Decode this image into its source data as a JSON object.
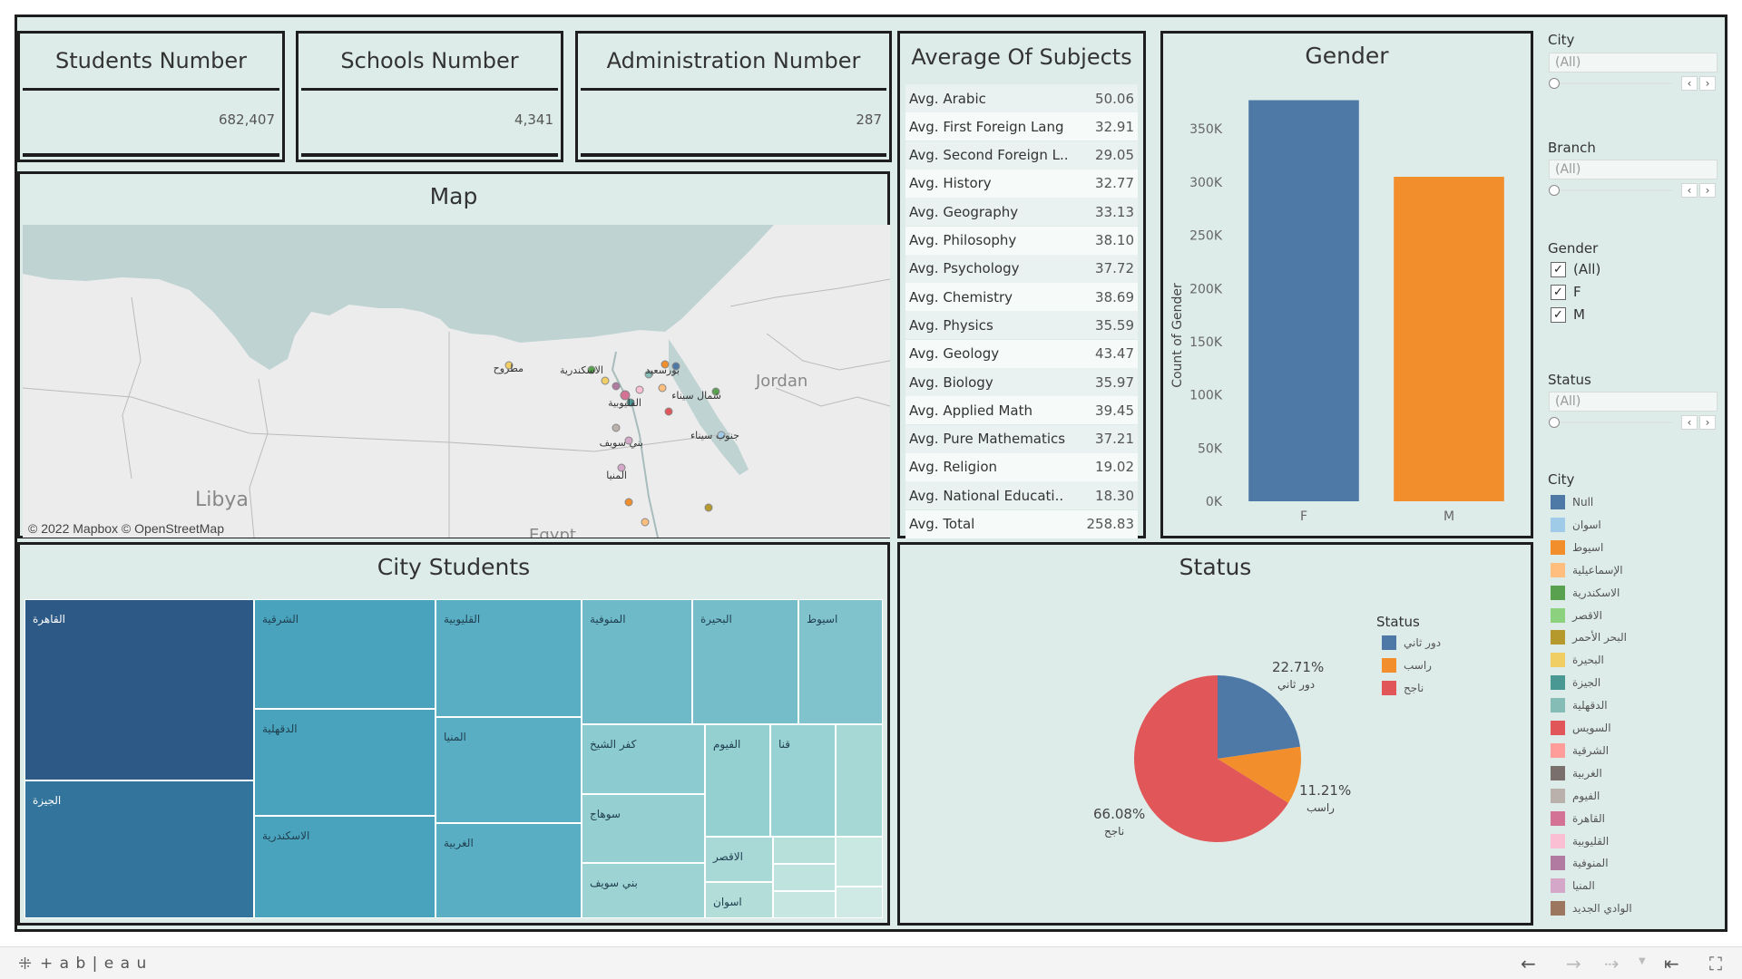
{
  "kpis": {
    "students": {
      "title": "Students Number",
      "value": "682,407"
    },
    "schools": {
      "title": "Schools Number",
      "value": "4,341"
    },
    "admin": {
      "title": "Administration Number",
      "value": "287"
    }
  },
  "averages": {
    "title": "Average Of Subjects",
    "rows": [
      {
        "label": "Avg. Arabic",
        "value": "50.06"
      },
      {
        "label": "Avg. First Foreign Lang",
        "value": "32.91"
      },
      {
        "label": "Avg. Second Foreign L..",
        "value": "29.05"
      },
      {
        "label": "Avg. History",
        "value": "32.77"
      },
      {
        "label": "Avg. Geography",
        "value": "33.13"
      },
      {
        "label": "Avg. Philosophy",
        "value": "38.10"
      },
      {
        "label": "Avg. Psychology",
        "value": "37.72"
      },
      {
        "label": "Avg. Chemistry",
        "value": "38.69"
      },
      {
        "label": "Avg. Physics",
        "value": "35.59"
      },
      {
        "label": "Avg. Geology",
        "value": "43.47"
      },
      {
        "label": "Avg. Biology",
        "value": "35.97"
      },
      {
        "label": "Avg. Applied Math",
        "value": "39.45"
      },
      {
        "label": "Avg. Pure Mathematics",
        "value": "37.21"
      },
      {
        "label": "Avg. Religion",
        "value": "19.02"
      },
      {
        "label": "Avg. National Educati..",
        "value": "18.30"
      },
      {
        "label": "Avg. Total",
        "value": "258.83"
      }
    ]
  },
  "map": {
    "title": "Map",
    "attribution": "© 2022 Mapbox  © OpenStreetMap",
    "country_labels": [
      "Libya",
      "Jordan",
      "Egypt"
    ],
    "city_labels": [
      "مطروح",
      "الاسكندرية",
      "بورسعيد",
      "القليوبية",
      "شمال سيناء",
      "جنوب سيناء",
      "بني سويف",
      "المنيا"
    ]
  },
  "city_students": {
    "title": "City Students",
    "cells": [
      "القاهرة",
      "الجيزة",
      "الشرقية",
      "الدقهلية",
      "الاسكندرية",
      "القليوبية",
      "المنيا",
      "الغربية",
      "المنوفية",
      "البحيرة",
      "اسيوط",
      "كفر الشيخ",
      "الفيوم",
      "قنا",
      "سوهاج",
      "بني سويف",
      "الاقصر",
      "اسوان"
    ]
  },
  "status": {
    "title": "Status",
    "legend_title": "Status",
    "legend": [
      {
        "label": "دور ثاني",
        "color": "#4e79a7"
      },
      {
        "label": "راسب",
        "color": "#f28e2b"
      },
      {
        "label": "ناجح",
        "color": "#e15759"
      }
    ],
    "labels": {
      "second": {
        "pct": "22.71%",
        "name": "دور ثاني"
      },
      "fail": {
        "pct": "11.21%",
        "name": "راسب"
      },
      "pass": {
        "pct": "66.08%",
        "name": "ناجح"
      }
    }
  },
  "filters": {
    "city_title": "City",
    "city_value": "(All)",
    "branch_title": "Branch",
    "branch_value": "(All)",
    "gender_title": "Gender",
    "gender_options": [
      "(All)",
      "F",
      "M"
    ],
    "status_title": "Status",
    "status_value": "(All)",
    "legend_title": "City",
    "legend_items": [
      {
        "label": "Null",
        "color": "#4e79a7"
      },
      {
        "label": "اسوان",
        "color": "#a0cbe8"
      },
      {
        "label": "اسيوط",
        "color": "#f28e2b"
      },
      {
        "label": "الإسماعيلية",
        "color": "#ffbe7d"
      },
      {
        "label": "الاسكندرية",
        "color": "#59a14f"
      },
      {
        "label": "الاقصر",
        "color": "#8cd17d"
      },
      {
        "label": "البحر الأحمر",
        "color": "#b6992d"
      },
      {
        "label": "البحيرة",
        "color": "#f1ce63"
      },
      {
        "label": "الجيزة",
        "color": "#499894"
      },
      {
        "label": "الدقهلية",
        "color": "#86bcb6"
      },
      {
        "label": "السويس",
        "color": "#e15759"
      },
      {
        "label": "الشرقية",
        "color": "#ff9d9a"
      },
      {
        "label": "الغربية",
        "color": "#79706e"
      },
      {
        "label": "الفيوم",
        "color": "#bab0ac"
      },
      {
        "label": "القاهرة",
        "color": "#d37295"
      },
      {
        "label": "القليوبية",
        "color": "#fabfd2"
      },
      {
        "label": "المنوفية",
        "color": "#b07aa1"
      },
      {
        "label": "المنيا",
        "color": "#d4a6c8"
      },
      {
        "label": "الوادي الجديد",
        "color": "#9d7660"
      }
    ]
  },
  "footer": {
    "brand": "+ a b | e a u"
  },
  "colors": {
    "bg": "#ddece8",
    "border": "#1e1e1e",
    "blue": "#4e79a7",
    "orange": "#f28e2b",
    "red": "#e15759"
  },
  "chart_data": [
    {
      "type": "bar",
      "title": "Gender",
      "categories": [
        "F",
        "M"
      ],
      "values": [
        377000,
        305000
      ],
      "colors": [
        "#4e79a7",
        "#f28e2b"
      ],
      "xlabel": "",
      "ylabel": "Count of Gender",
      "ylim": [
        0,
        380000
      ],
      "yticks": [
        0,
        50000,
        100000,
        150000,
        200000,
        250000,
        300000,
        350000
      ],
      "ytick_labels": [
        "0K",
        "50K",
        "100K",
        "150K",
        "200K",
        "250K",
        "300K",
        "350K"
      ]
    },
    {
      "type": "pie",
      "title": "Status",
      "categories": [
        "دور ثاني",
        "راسب",
        "ناجح"
      ],
      "values": [
        22.71,
        11.21,
        66.08
      ],
      "colors": [
        "#4e79a7",
        "#f28e2b",
        "#e15759"
      ]
    }
  ]
}
